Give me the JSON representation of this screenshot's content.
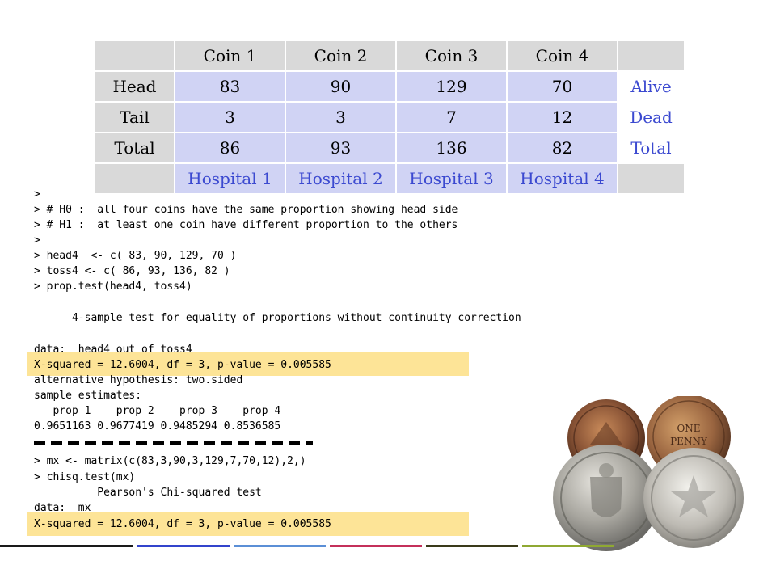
{
  "table": {
    "header": [
      "",
      "Coin 1",
      "Coin 2",
      "Coin 3",
      "Coin 4",
      ""
    ],
    "rows": [
      [
        "Head",
        "83",
        "90",
        "129",
        "70",
        "Alive"
      ],
      [
        "Tail",
        "3",
        "3",
        "7",
        "12",
        "Dead"
      ],
      [
        "Total",
        "86",
        "93",
        "136",
        "82",
        "Total"
      ]
    ],
    "footer": [
      "",
      "Hospital 1",
      "Hospital 2",
      "Hospital 3",
      "Hospital 4",
      ""
    ]
  },
  "console": {
    "lines": [
      ">",
      "> # H0 :  all four coins have the same proportion showing head side",
      "> # H1 :  at least one coin have different proportion to the others",
      ">",
      "> head4  <- c( 83, 90, 129, 70 )",
      "> toss4 <- c( 86, 93, 136, 82 )",
      "> prop.test(head4, toss4)",
      "      4-sample test for equality of proportions without continuity correction",
      "data:  head4 out of toss4",
      "X-squared = 12.6004, df = 3, p-value = 0.005585",
      "alternative hypothesis: two.sided",
      "sample estimates:",
      "   prop 1    prop 2    prop 3    prop 4 ",
      "0.9651163 0.9677419 0.9485294 0.8536585 ",
      "> mx <- matrix(c(83,3,90,3,129,7,70,12),2,)",
      "> chisq.test(mx)",
      "          Pearson's Chi-squared test",
      "data:  mx",
      "X-squared = 12.6004, df = 3, p-value = 0.005585"
    ]
  },
  "colors": {
    "table_gray": "#d9d9d9",
    "table_blue": "#d0d3f4",
    "blue_text": "#3b49d0",
    "highlight": "#fde497",
    "footer_bars": [
      "#1a1a1a",
      "#3344cc",
      "#5b8fd6",
      "#c4305a",
      "#3a3a1a",
      "#8fa832"
    ]
  },
  "image": {
    "icon": "coins-photo"
  }
}
